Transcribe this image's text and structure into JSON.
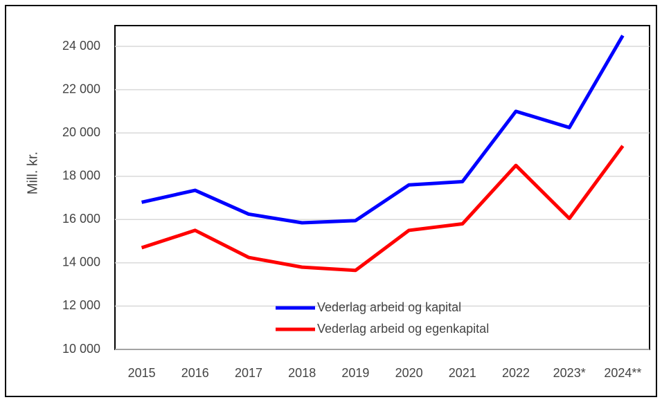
{
  "chart_data": {
    "type": "line",
    "y_label": "Mill. kr.",
    "categories": [
      "2015",
      "2016",
      "2017",
      "2018",
      "2019",
      "2020",
      "2021",
      "2022",
      "2023*",
      "2024**"
    ],
    "series": [
      {
        "name": "Vederlag arbeid og kapital",
        "color": "#0000ff",
        "values": [
          16800,
          17350,
          16250,
          15850,
          15950,
          17600,
          17750,
          21000,
          20250,
          24500
        ]
      },
      {
        "name": "Vederlag arbeid og egenkapital",
        "color": "#ff0000",
        "values": [
          14700,
          15500,
          14250,
          13800,
          13650,
          15500,
          15800,
          18500,
          16050,
          19400
        ]
      }
    ],
    "ylim": [
      10000,
      24000
    ],
    "yticks": [
      {
        "value": 10000,
        "label": "10 000"
      },
      {
        "value": 12000,
        "label": "12 000"
      },
      {
        "value": 14000,
        "label": "14 000"
      },
      {
        "value": 16000,
        "label": "16 000"
      },
      {
        "value": 18000,
        "label": "18 000"
      },
      {
        "value": 20000,
        "label": "20 000"
      },
      {
        "value": 22000,
        "label": "22 000"
      },
      {
        "value": 24000,
        "label": "24 000"
      }
    ],
    "grid": true
  }
}
